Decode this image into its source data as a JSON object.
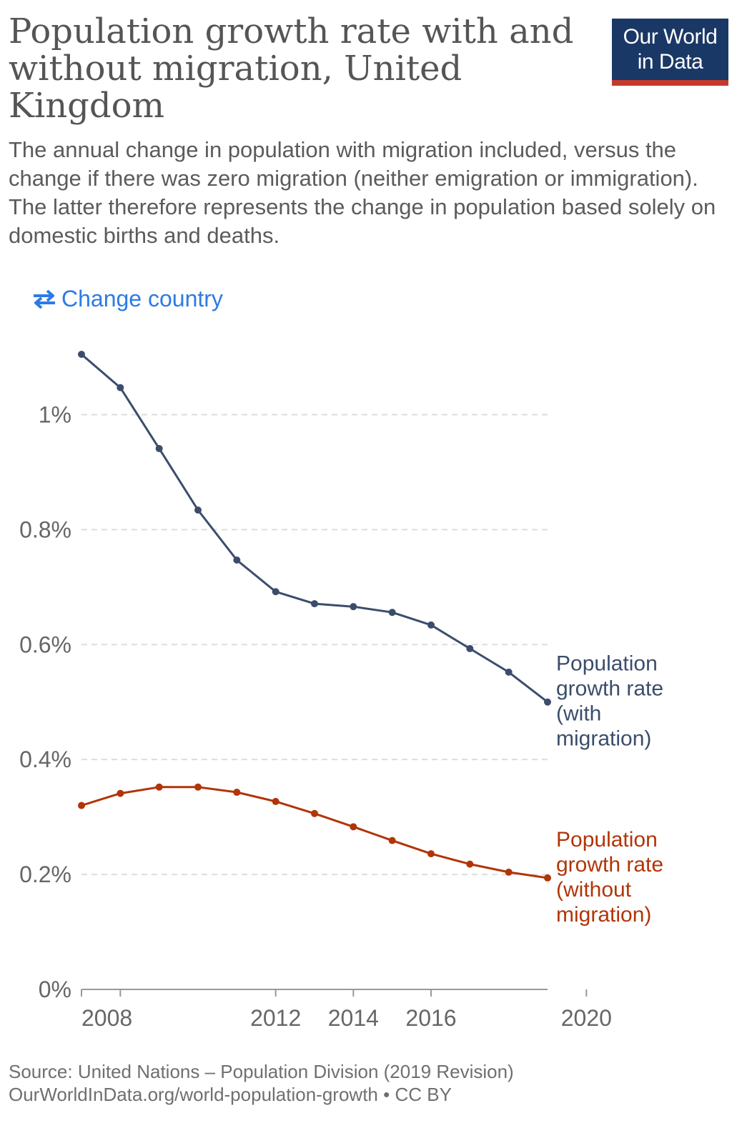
{
  "header": {
    "title": "Population growth rate with and without migration, United Kingdom",
    "subtitle": "The annual change in population with migration included, versus the change if there was zero migration (neither emigration or immigration). The latter therefore represents the change in population based solely on domestic births and deaths.",
    "logo_line1": "Our World",
    "logo_line2": "in Data",
    "logo_colors": {
      "background": "#1a3866",
      "stripe": "#c4392c"
    }
  },
  "controls": {
    "change_country_label": "Change country",
    "change_country_icon": "swap-arrows-icon"
  },
  "chart_data": {
    "type": "line",
    "title": "",
    "xlabel": "",
    "ylabel": "",
    "x": [
      2007,
      2008,
      2009,
      2010,
      2011,
      2012,
      2013,
      2014,
      2015,
      2016,
      2017,
      2018,
      2019,
      2020
    ],
    "xticks": [
      2008,
      2012,
      2014,
      2016,
      2020
    ],
    "xlim": [
      2007,
      2019
    ],
    "ylim": [
      0,
      1.1
    ],
    "yticks": [
      0,
      0.2,
      0.4,
      0.6,
      0.8,
      1.0
    ],
    "ytick_labels": [
      "0%",
      "0.2%",
      "0.4%",
      "0.6%",
      "0.8%",
      "1%"
    ],
    "grid": "horizontal-dashed",
    "legend": "inline-right",
    "series": [
      {
        "name": "Population growth rate (with migration)",
        "label_lines": [
          "Population",
          "growth rate",
          "(with",
          "migration)"
        ],
        "color": "#3b4d6b",
        "x": [
          2007,
          2008,
          2009,
          2010,
          2011,
          2012,
          2013,
          2014,
          2015,
          2016,
          2017,
          2018,
          2019
        ],
        "values": [
          1.105,
          1.047,
          0.941,
          0.834,
          0.747,
          0.692,
          0.671,
          0.666,
          0.656,
          0.634,
          0.593,
          0.552,
          0.5
        ]
      },
      {
        "name": "Population growth rate (without migration)",
        "label_lines": [
          "Population",
          "growth rate",
          "(without",
          "migration)"
        ],
        "color": "#b13507",
        "x": [
          2007,
          2008,
          2009,
          2010,
          2011,
          2012,
          2013,
          2014,
          2015,
          2016,
          2017,
          2018,
          2019
        ],
        "values": [
          0.32,
          0.341,
          0.352,
          0.352,
          0.343,
          0.327,
          0.306,
          0.283,
          0.259,
          0.236,
          0.218,
          0.204,
          0.194
        ]
      }
    ]
  },
  "footer": {
    "source": "Source: United Nations – Population Division (2019 Revision)",
    "url": "OurWorldInData.org/world-population-growth",
    "separator": "•",
    "license": "CC BY"
  }
}
